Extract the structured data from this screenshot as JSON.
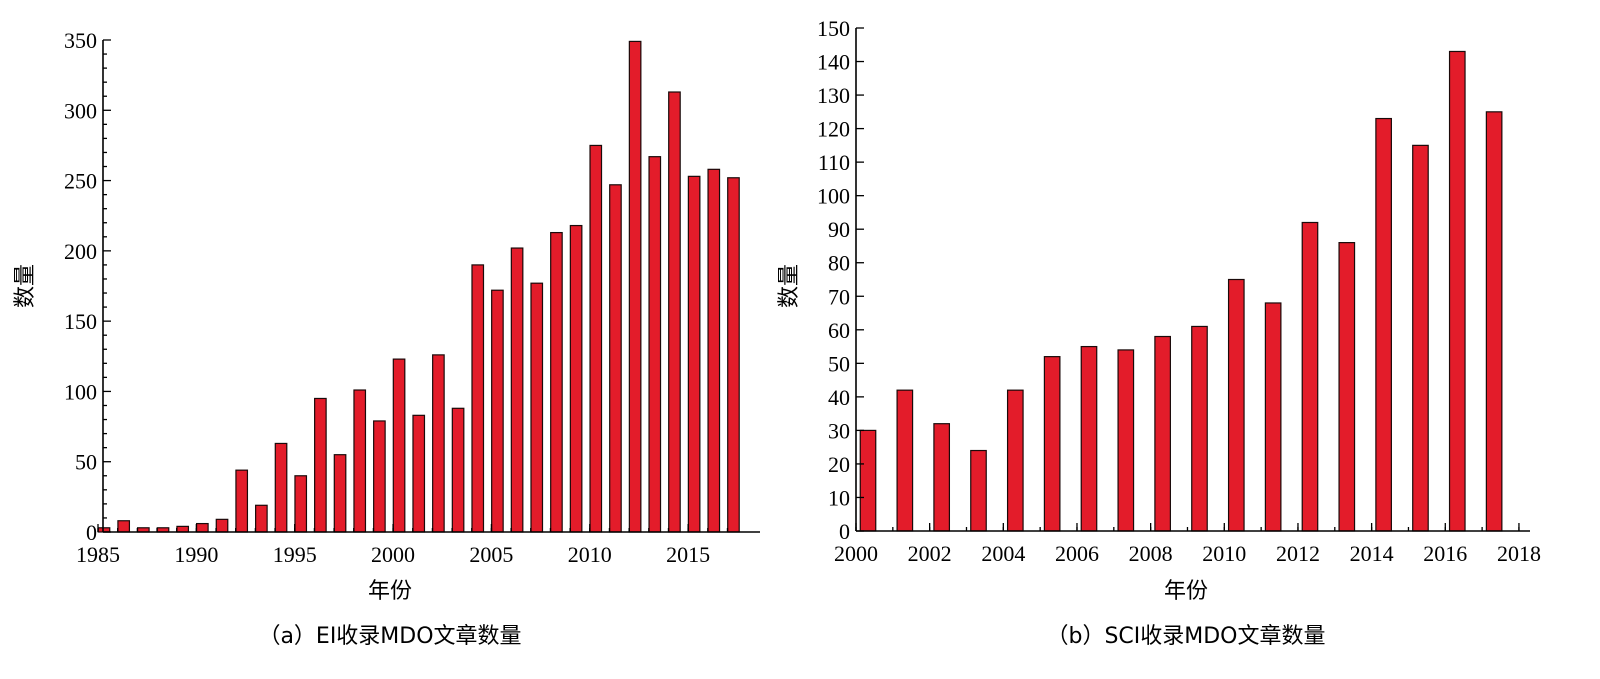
{
  "chart_data": [
    {
      "type": "bar",
      "caption": "（a）EI收录MDO文章数量",
      "xlabel": "年份",
      "ylabel": "数量",
      "ylim": [
        0,
        350
      ],
      "y_ticks": [
        0,
        50,
        100,
        150,
        200,
        250,
        300,
        350
      ],
      "xlim": [
        1985,
        2017
      ],
      "x_ticks": [
        1985,
        1990,
        1995,
        2000,
        2005,
        2010,
        2015
      ],
      "x": [
        1985,
        1986,
        1987,
        1988,
        1989,
        1990,
        1991,
        1992,
        1993,
        1994,
        1995,
        1996,
        1997,
        1998,
        1999,
        2000,
        2001,
        2002,
        2003,
        2004,
        2005,
        2006,
        2007,
        2008,
        2009,
        2010,
        2011,
        2012,
        2013,
        2014,
        2015,
        2016,
        2017
      ],
      "values": [
        3,
        8,
        3,
        3,
        4,
        6,
        9,
        44,
        19,
        63,
        40,
        95,
        55,
        101,
        79,
        123,
        83,
        126,
        88,
        190,
        172,
        202,
        177,
        213,
        218,
        275,
        247,
        349,
        267,
        313,
        253,
        258,
        252
      ],
      "color": "#e31c2a"
    },
    {
      "type": "bar",
      "caption": "（b）SCI收录MDO文章数量",
      "xlabel": "年份",
      "ylabel": "数量",
      "ylim": [
        0,
        150
      ],
      "y_ticks": [
        0,
        10,
        20,
        30,
        40,
        50,
        60,
        70,
        80,
        90,
        100,
        110,
        120,
        130,
        140,
        150
      ],
      "xlim": [
        2000,
        2018
      ],
      "x_ticks": [
        2000,
        2002,
        2004,
        2006,
        2008,
        2010,
        2012,
        2014,
        2016,
        2018
      ],
      "x": [
        2000,
        2001,
        2002,
        2003,
        2004,
        2005,
        2006,
        2007,
        2008,
        2009,
        2010,
        2011,
        2012,
        2013,
        2014,
        2015,
        2016,
        2017
      ],
      "values": [
        30,
        42,
        32,
        24,
        42,
        52,
        55,
        54,
        58,
        61,
        75,
        68,
        92,
        86,
        123,
        115,
        143,
        125
      ],
      "color": "#e31c2a"
    }
  ]
}
